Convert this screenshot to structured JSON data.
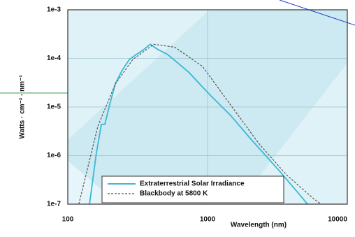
{
  "chart_data": {
    "type": "line",
    "y_label": "Watts · cm⁻² · nm⁻¹",
    "x_label": "Wavelength (nm)",
    "x_log": true,
    "y_log": true,
    "grid": true,
    "legend": "lower center",
    "xlim": [
      100,
      10000
    ],
    "xticks": [
      100,
      1000,
      10000
    ],
    "ylim": [
      1e-07,
      0.001
    ],
    "yticks": [
      {
        "value": 1e-07,
        "label": "1e-7"
      },
      {
        "value": 1e-06,
        "label": "1e-6"
      },
      {
        "value": 1e-05,
        "label": "1e-5"
      },
      {
        "value": 0.0001,
        "label": "1e-4"
      },
      {
        "value": 0.001,
        "label": "1e-3"
      }
    ],
    "series": [
      {
        "name": "Extraterrestrial Solar Irradiance",
        "color": "#3ab8d6",
        "dashed": false,
        "x": [
          143,
          160,
          174,
          184,
          202,
          219,
          245,
          276,
          309,
          347,
          389,
          437,
          519,
          733,
          1035,
          1462,
          2065,
          3272,
          4619,
          5180
        ],
        "values": [
          1e-07,
          1.1e-06,
          4.4e-06,
          4.4e-06,
          1.3e-05,
          3e-05,
          5.7e-05,
          9.5e-05,
          0.00012,
          0.00015,
          0.000195,
          0.000155,
          0.00012,
          5.2e-05,
          1.8e-05,
          6.7e-06,
          2.1e-06,
          4.8e-07,
          1.5e-07,
          1e-07
        ]
      },
      {
        "name": "Blackbody at 5800 K",
        "color": "#555555",
        "dashed": true,
        "x": [
          120,
          164,
          219,
          292,
          412,
          583,
          922,
          1462,
          2318,
          3672,
          5821,
          6500
        ],
        "values": [
          1e-07,
          4e-06,
          3e-05,
          9.5e-05,
          0.000195,
          0.00017,
          6.8e-05,
          1.1e-05,
          1.8e-06,
          4e-07,
          1.25e-07,
          1e-07
        ]
      }
    ]
  }
}
